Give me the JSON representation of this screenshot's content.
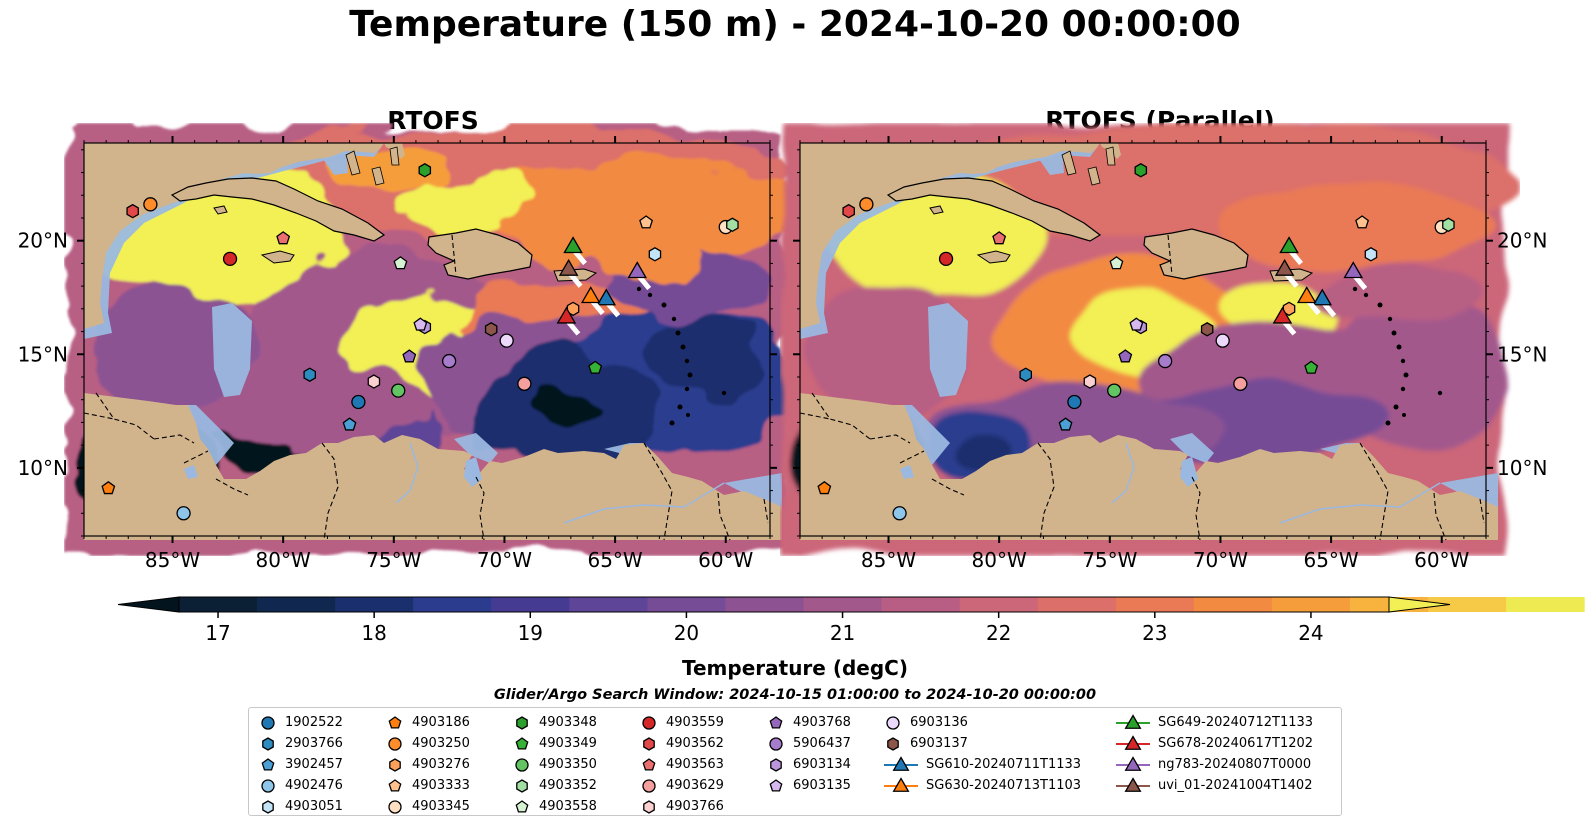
{
  "title": "Temperature (150 m) - 2024-10-20 00:00:00",
  "panels": [
    {
      "title": "RTOFS",
      "variant": "rtofs"
    },
    {
      "title": "RTOFS (Parallel)",
      "variant": "parallel"
    }
  ],
  "map_extent": {
    "lon": [
      -89,
      -58
    ],
    "lat": [
      7,
      24.3
    ]
  },
  "lon_ticks": [
    {
      "value": -85,
      "label": "85°W"
    },
    {
      "value": -80,
      "label": "80°W"
    },
    {
      "value": -75,
      "label": "75°W"
    },
    {
      "value": -70,
      "label": "70°W"
    },
    {
      "value": -65,
      "label": "65°W"
    },
    {
      "value": -60,
      "label": "60°W"
    }
  ],
  "lat_ticks": [
    {
      "value": 10,
      "label": "10°N"
    },
    {
      "value": 15,
      "label": "15°N"
    },
    {
      "value": 20,
      "label": "20°N"
    }
  ],
  "colorbar": {
    "label": "Temperature (degC)",
    "min": 16.75,
    "max": 24.5,
    "step": 0.5,
    "ticks": [
      17,
      18,
      19,
      20,
      21,
      22,
      23,
      24
    ],
    "colors": [
      "#0b2035",
      "#10284f",
      "#1a2f6e",
      "#2b3c8f",
      "#463b93",
      "#5e4597",
      "#764c96",
      "#8c5292",
      "#a3588c",
      "#b85e84",
      "#cc6679",
      "#dc6f6a",
      "#ea7a55",
      "#f28a42",
      "#f69d3b",
      "#f8b33e",
      "#f6c947",
      "#edea52"
    ],
    "under_color": "#04141f",
    "over_color": "#f2f054"
  },
  "legend": {
    "title": "Glider/Argo Search Window: 2024-10-15 01:00:00 to 2024-10-20 00:00:00",
    "columns": [
      [
        {
          "label": "1902522",
          "marker": "circle",
          "color": "#1f77b4"
        },
        {
          "label": "2903766",
          "marker": "hexagon",
          "color": "#2e8bc0"
        },
        {
          "label": "3902457",
          "marker": "pentagon",
          "color": "#4c9fd4"
        },
        {
          "label": "4902476",
          "marker": "circle",
          "color": "#8ec6ea"
        },
        {
          "label": "4903051",
          "marker": "hexagon",
          "color": "#c3e3f7"
        }
      ],
      [
        {
          "label": "4903186",
          "marker": "pentagon",
          "color": "#ff7f0e"
        },
        {
          "label": "4903250",
          "marker": "circle",
          "color": "#ff8c2a"
        },
        {
          "label": "4903276",
          "marker": "hexagon",
          "color": "#ffa05a"
        },
        {
          "label": "4903333",
          "marker": "pentagon",
          "color": "#ffc28f"
        },
        {
          "label": "4903345",
          "marker": "circle",
          "color": "#ffe0c2"
        }
      ],
      [
        {
          "label": "4903348",
          "marker": "hexagon",
          "color": "#2ca02c"
        },
        {
          "label": "4903349",
          "marker": "pentagon",
          "color": "#36b336"
        },
        {
          "label": "4903350",
          "marker": "circle",
          "color": "#62c462"
        },
        {
          "label": "4903352",
          "marker": "hexagon",
          "color": "#a3dfa3"
        },
        {
          "label": "4903558",
          "marker": "pentagon",
          "color": "#d6f2d3"
        }
      ],
      [
        {
          "label": "4903559",
          "marker": "circle",
          "color": "#d62728"
        },
        {
          "label": "4903562",
          "marker": "hexagon",
          "color": "#e34848"
        },
        {
          "label": "4903563",
          "marker": "pentagon",
          "color": "#ec6f70"
        },
        {
          "label": "4903629",
          "marker": "circle",
          "color": "#f59f9f"
        },
        {
          "label": "4903766",
          "marker": "hexagon",
          "color": "#fbd0d0"
        }
      ],
      [
        {
          "label": "4903768",
          "marker": "pentagon",
          "color": "#9467bd"
        },
        {
          "label": "5906437",
          "marker": "circle",
          "color": "#a87ccc"
        },
        {
          "label": "6903134",
          "marker": "hexagon",
          "color": "#bc95db"
        },
        {
          "label": "6903135",
          "marker": "pentagon",
          "color": "#d7b9ef"
        }
      ],
      [
        {
          "label": "6903136",
          "marker": "circle",
          "color": "#ecd8fb"
        },
        {
          "label": "6903137",
          "marker": "hexagon",
          "color": "#8c564b"
        },
        {
          "label": "SG610-20240711T1133",
          "marker": "triangle",
          "color": "#1f77b4"
        },
        {
          "label": "SG630-20240713T1103",
          "marker": "triangle",
          "color": "#ff7f0e"
        }
      ],
      [
        {
          "label": "SG649-20240712T1133",
          "marker": "triangle",
          "color": "#2ca02c"
        },
        {
          "label": "SG678-20240617T1202",
          "marker": "triangle",
          "color": "#d62728"
        },
        {
          "label": "ng783-20240807T0000",
          "marker": "triangle",
          "color": "#9467bd"
        },
        {
          "label": "uvi_01-20241004T1402",
          "marker": "triangle",
          "color": "#8c564b"
        }
      ]
    ]
  },
  "observations": [
    {
      "label": "1902522",
      "lon": -76.6,
      "lat": 12.9
    },
    {
      "label": "2903766",
      "lon": -78.8,
      "lat": 14.1
    },
    {
      "label": "3902457",
      "lon": -77.0,
      "lat": 11.9
    },
    {
      "label": "4902476",
      "lon": -84.5,
      "lat": 8.0
    },
    {
      "label": "4903051",
      "lon": -63.2,
      "lat": 19.4
    },
    {
      "label": "4903186",
      "lon": -87.9,
      "lat": 9.1
    },
    {
      "label": "4903250",
      "lon": -86.0,
      "lat": 21.6
    },
    {
      "label": "4903276",
      "lon": -66.9,
      "lat": 17.0
    },
    {
      "label": "4903333",
      "lon": -63.6,
      "lat": 20.8
    },
    {
      "label": "4903345",
      "lon": -60.0,
      "lat": 20.6
    },
    {
      "label": "4903348",
      "lon": -73.6,
      "lat": 23.1
    },
    {
      "label": "4903349",
      "lon": -65.9,
      "lat": 14.4
    },
    {
      "label": "4903350",
      "lon": -74.8,
      "lat": 13.4
    },
    {
      "label": "4903352",
      "lon": -59.7,
      "lat": 20.7
    },
    {
      "label": "4903558",
      "lon": -74.7,
      "lat": 19.0
    },
    {
      "label": "4903559",
      "lon": -82.4,
      "lat": 19.2
    },
    {
      "label": "4903562",
      "lon": -86.8,
      "lat": 21.3
    },
    {
      "label": "4903563",
      "lon": -80.0,
      "lat": 20.1
    },
    {
      "label": "4903629",
      "lon": -69.1,
      "lat": 13.7
    },
    {
      "label": "4903766",
      "lon": -75.9,
      "lat": 13.8
    },
    {
      "label": "4903768",
      "lon": -74.3,
      "lat": 14.9
    },
    {
      "label": "5906437",
      "lon": -72.5,
      "lat": 14.7
    },
    {
      "label": "6903134",
      "lon": -73.6,
      "lat": 16.2
    },
    {
      "label": "6903135",
      "lon": -73.8,
      "lat": 16.3
    },
    {
      "label": "6903136",
      "lon": -69.9,
      "lat": 15.6
    },
    {
      "label": "6903137",
      "lon": -70.6,
      "lat": 16.1
    }
  ],
  "gliders": [
    {
      "label": "SG610-20240711T1133",
      "lon": -65.4,
      "lat": 17.4
    },
    {
      "label": "SG630-20240713T1103",
      "lon": -66.1,
      "lat": 17.5
    },
    {
      "label": "SG649-20240712T1133",
      "lon": -66.9,
      "lat": 19.7
    },
    {
      "label": "SG678-20240617T1202",
      "lon": -67.2,
      "lat": 16.6
    },
    {
      "label": "ng783-20240807T0000",
      "lon": -64.0,
      "lat": 18.6
    },
    {
      "label": "uvi_01-20241004T1402",
      "lon": -67.1,
      "lat": 18.7
    }
  ]
}
